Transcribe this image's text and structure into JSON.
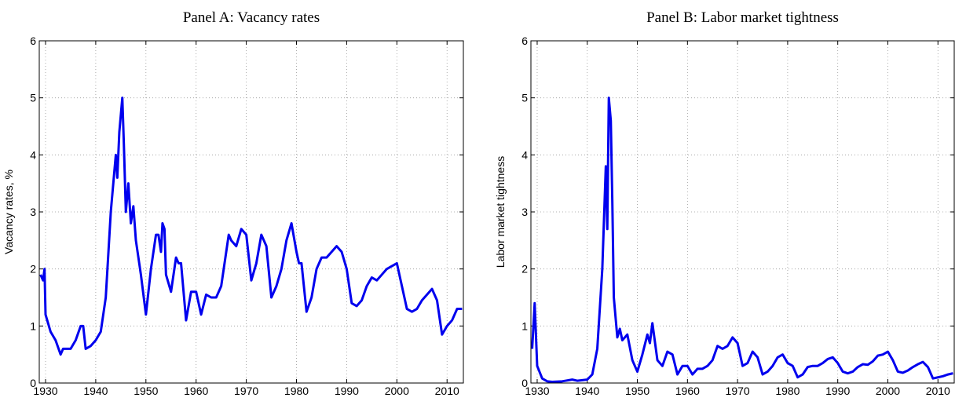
{
  "chart_data": [
    {
      "type": "line",
      "title": "Panel A: Vacancy rates",
      "ylabel": "Vacancy rates, %",
      "color": "#0000ee",
      "grid": true,
      "xlim": [
        1928.75,
        2013.25
      ],
      "ylim": [
        0,
        6
      ],
      "xticks": [
        1930,
        1940,
        1950,
        1960,
        1970,
        1980,
        1990,
        2000,
        2010
      ],
      "yticks": [
        0,
        1,
        2,
        3,
        4,
        5,
        6
      ],
      "x": [
        1929,
        1929.5,
        1929.8,
        1930,
        1931,
        1932,
        1933,
        1933.5,
        1934,
        1935,
        1936,
        1937,
        1937.5,
        1938,
        1939,
        1940,
        1941,
        1942,
        1943,
        1943.5,
        1944,
        1944.3,
        1944.7,
        1945,
        1945.3,
        1945.6,
        1946,
        1946.5,
        1947,
        1947.5,
        1948,
        1949,
        1950,
        1951,
        1952,
        1952.5,
        1953,
        1953.3,
        1953.7,
        1954,
        1955,
        1956,
        1956.5,
        1957,
        1958,
        1959,
        1960,
        1961,
        1962,
        1963,
        1964,
        1965,
        1966,
        1966.5,
        1967,
        1968,
        1969,
        1970,
        1971,
        1972,
        1973,
        1974,
        1975,
        1976,
        1977,
        1978,
        1979,
        1980,
        1980.5,
        1981,
        1982,
        1983,
        1984,
        1985,
        1986,
        1987,
        1988,
        1989,
        1990,
        1991,
        1992,
        1993,
        1994,
        1995,
        1996,
        1997,
        1998,
        1999,
        2000,
        2001,
        2002,
        2003,
        2004,
        2005,
        2006,
        2007,
        2008,
        2009,
        2010,
        2011,
        2012,
        2013
      ],
      "values": [
        1.9,
        1.8,
        2.0,
        1.2,
        0.9,
        0.75,
        0.5,
        0.6,
        0.6,
        0.6,
        0.75,
        1.0,
        1.0,
        0.6,
        0.65,
        0.75,
        0.9,
        1.5,
        3.0,
        3.5,
        4.0,
        3.6,
        4.4,
        4.7,
        5.0,
        4.2,
        3.0,
        3.5,
        2.8,
        3.1,
        2.5,
        1.9,
        1.2,
        2.0,
        2.6,
        2.6,
        2.3,
        2.8,
        2.7,
        1.9,
        1.6,
        2.2,
        2.1,
        2.1,
        1.1,
        1.6,
        1.6,
        1.2,
        1.55,
        1.5,
        1.5,
        1.7,
        2.3,
        2.6,
        2.5,
        2.4,
        2.7,
        2.6,
        1.8,
        2.1,
        2.6,
        2.4,
        1.5,
        1.7,
        2.0,
        2.5,
        2.8,
        2.3,
        2.1,
        2.1,
        1.25,
        1.5,
        2.0,
        2.2,
        2.2,
        2.3,
        2.4,
        2.3,
        2.0,
        1.4,
        1.35,
        1.45,
        1.7,
        1.85,
        1.8,
        1.9,
        2.0,
        2.05,
        2.1,
        1.7,
        1.3,
        1.25,
        1.3,
        1.45,
        1.55,
        1.65,
        1.45,
        0.85,
        1.0,
        1.1,
        1.3,
        1.3
      ]
    },
    {
      "type": "line",
      "title": "Panel B: Labor market tightness",
      "ylabel": "Labor market tightness",
      "color": "#0000ee",
      "grid": true,
      "xlim": [
        1928.75,
        2013.25
      ],
      "ylim": [
        0,
        6
      ],
      "xticks": [
        1930,
        1940,
        1950,
        1960,
        1970,
        1980,
        1990,
        2000,
        2010
      ],
      "yticks": [
        0,
        1,
        2,
        3,
        4,
        5,
        6
      ],
      "x": [
        1929,
        1929.5,
        1930,
        1931,
        1932,
        1933,
        1935,
        1937,
        1938,
        1940,
        1941,
        1942,
        1943,
        1943.7,
        1944,
        1944.3,
        1944.7,
        1945,
        1945.3,
        1946,
        1946.5,
        1947,
        1948,
        1949,
        1950,
        1951,
        1952,
        1952.5,
        1953,
        1954,
        1955,
        1956,
        1957,
        1958,
        1959,
        1960,
        1961,
        1962,
        1963,
        1964,
        1965,
        1966,
        1967,
        1968,
        1969,
        1970,
        1971,
        1972,
        1973,
        1974,
        1975,
        1976,
        1977,
        1978,
        1979,
        1980,
        1981,
        1982,
        1983,
        1984,
        1985,
        1986,
        1987,
        1988,
        1989,
        1990,
        1991,
        1992,
        1993,
        1994,
        1995,
        1996,
        1997,
        1998,
        1999,
        2000,
        2001,
        2002,
        2003,
        2004,
        2005,
        2006,
        2007,
        2008,
        2009,
        2010,
        2011,
        2012,
        2013
      ],
      "values": [
        0.6,
        1.4,
        0.3,
        0.08,
        0.03,
        0.02,
        0.03,
        0.06,
        0.04,
        0.06,
        0.15,
        0.6,
        2.0,
        3.8,
        2.7,
        5.0,
        4.6,
        3.2,
        1.5,
        0.8,
        0.95,
        0.75,
        0.85,
        0.4,
        0.2,
        0.5,
        0.85,
        0.7,
        1.05,
        0.4,
        0.3,
        0.55,
        0.5,
        0.15,
        0.3,
        0.3,
        0.15,
        0.25,
        0.25,
        0.3,
        0.4,
        0.65,
        0.6,
        0.65,
        0.8,
        0.7,
        0.3,
        0.35,
        0.55,
        0.45,
        0.15,
        0.2,
        0.3,
        0.45,
        0.5,
        0.35,
        0.3,
        0.1,
        0.15,
        0.28,
        0.3,
        0.3,
        0.35,
        0.42,
        0.45,
        0.35,
        0.2,
        0.17,
        0.2,
        0.28,
        0.33,
        0.32,
        0.38,
        0.48,
        0.5,
        0.55,
        0.4,
        0.2,
        0.18,
        0.22,
        0.28,
        0.33,
        0.37,
        0.28,
        0.08,
        0.1,
        0.12,
        0.15,
        0.17
      ]
    }
  ]
}
